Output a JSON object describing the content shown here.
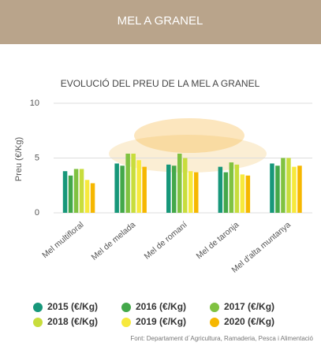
{
  "header": {
    "title": "MEL A GRANEL"
  },
  "chart_data": {
    "type": "bar",
    "title": "EVOLUCIÓ DEL PREU DE LA MEL A GRANEL",
    "y_label": "Preu (€/Kg)",
    "categories": [
      "Mel multifloral",
      "Mel de melada",
      "Mel de romaní",
      "Mel de taronja",
      "Mel d'alta muntanya"
    ],
    "series": [
      {
        "name": "2015 (€/Kg)",
        "color": "#17977a",
        "values": [
          3.8,
          4.5,
          4.4,
          4.2,
          4.5
        ]
      },
      {
        "name": "2016 (€/Kg)",
        "color": "#43a84a",
        "values": [
          3.4,
          4.3,
          4.3,
          3.7,
          4.3
        ]
      },
      {
        "name": "2017 (€/Kg)",
        "color": "#80c241",
        "values": [
          4.0,
          5.4,
          5.4,
          4.6,
          5.0
        ]
      },
      {
        "name": "2018 (€/Kg)",
        "color": "#c8dd3c",
        "values": [
          4.0,
          5.4,
          5.0,
          4.4,
          5.0
        ]
      },
      {
        "name": "2019 (€/Kg)",
        "color": "#f7e93c",
        "values": [
          3.0,
          4.8,
          3.8,
          3.5,
          4.2
        ]
      },
      {
        "name": "2020 (€/Kg)",
        "color": "#f6b700",
        "values": [
          2.7,
          4.2,
          3.7,
          3.4,
          4.3
        ]
      }
    ],
    "ylim": [
      0,
      10
    ],
    "yticks": [
      0,
      5,
      10
    ],
    "grid": true
  },
  "source": "Font: Departament d´Agricultura, Ramaderia, Pesca i Alimentació"
}
